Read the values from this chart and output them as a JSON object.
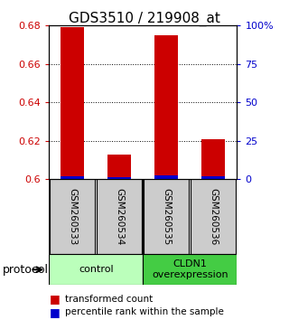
{
  "title": "GDS3510 / 219908_at",
  "samples": [
    "GSM260533",
    "GSM260534",
    "GSM260535",
    "GSM260536"
  ],
  "red_values": [
    0.679,
    0.613,
    0.675,
    0.621
  ],
  "blue_values": [
    0.6015,
    0.6012,
    0.6018,
    0.6015
  ],
  "ymin": 0.6,
  "ymax": 0.68,
  "yticks_left": [
    0.6,
    0.62,
    0.64,
    0.66,
    0.68
  ],
  "yticks_right": [
    0,
    25,
    50,
    75,
    100
  ],
  "yticks_right_labels": [
    "0",
    "25",
    "50",
    "75",
    "100%"
  ],
  "groups": [
    {
      "label": "control",
      "start": 0,
      "end": 2,
      "color": "#bbffbb"
    },
    {
      "label": "CLDN1\noverexpression",
      "start": 2,
      "end": 4,
      "color": "#44cc44"
    }
  ],
  "protocol_label": "protocol",
  "bar_width": 0.5,
  "red_color": "#cc0000",
  "blue_color": "#0000cc",
  "background_color": "#ffffff",
  "tick_label_color_left": "#cc0000",
  "tick_label_color_right": "#0000cc",
  "sample_bg_color": "#cccccc",
  "legend_red": "transformed count",
  "legend_blue": "percentile rank within the sample"
}
